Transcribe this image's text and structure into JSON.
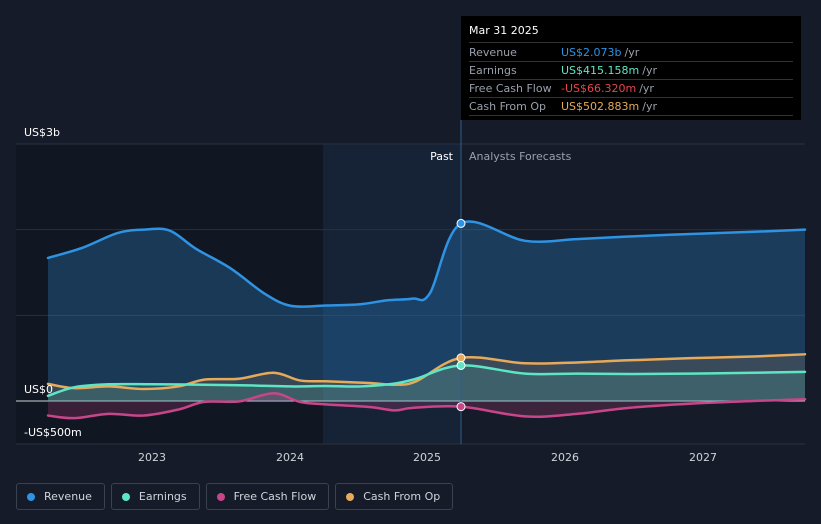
{
  "chart_data": {
    "type": "area",
    "y_top_label": "US$3b",
    "y_zero_label": "US$0",
    "y_bottom_label": "-US$500m",
    "ylim": [
      -500,
      3000
    ],
    "x_ticks": [
      "2023",
      "2024",
      "2025",
      "2026",
      "2027"
    ],
    "past_label": "Past",
    "forecast_label": "Analysts Forecasts",
    "divider_date": 2025.24,
    "series": [
      {
        "name": "Revenue",
        "color": "#2e93e3",
        "points": [
          [
            2022.0,
            1670
          ],
          [
            2022.2,
            1790
          ],
          [
            2022.4,
            1960
          ],
          [
            2022.55,
            2000
          ],
          [
            2022.7,
            1990
          ],
          [
            2022.85,
            1780
          ],
          [
            2023.05,
            1550
          ],
          [
            2023.25,
            1250
          ],
          [
            2023.4,
            1110
          ],
          [
            2023.6,
            1115
          ],
          [
            2023.8,
            1130
          ],
          [
            2023.95,
            1175
          ],
          [
            2024.1,
            1195
          ],
          [
            2024.2,
            1260
          ],
          [
            2024.24,
            2073
          ],
          [
            2025.5,
            1870
          ],
          [
            2025.75,
            1890
          ],
          [
            2026,
            1920
          ],
          [
            2026.3,
            1950
          ],
          [
            2026.6,
            1975
          ],
          [
            2026.85,
            2000
          ]
        ]
      },
      {
        "name": "Earnings",
        "color": "#5ee6c4",
        "points": [
          [
            2022.0,
            60
          ],
          [
            2022.15,
            160
          ],
          [
            2022.35,
            195
          ],
          [
            2022.6,
            195
          ],
          [
            2022.9,
            190
          ],
          [
            2023.2,
            180
          ],
          [
            2023.4,
            170
          ],
          [
            2023.6,
            175
          ],
          [
            2023.8,
            170
          ],
          [
            2024.0,
            205
          ],
          [
            2024.12,
            260
          ],
          [
            2024.24,
            415
          ],
          [
            2025.5,
            320
          ],
          [
            2025.75,
            320
          ],
          [
            2026,
            315
          ],
          [
            2026.3,
            320
          ],
          [
            2026.6,
            330
          ],
          [
            2026.85,
            340
          ]
        ]
      },
      {
        "name": "Free Cash Flow",
        "color": "#c7468a",
        "points": [
          [
            2022.0,
            -170
          ],
          [
            2022.15,
            -200
          ],
          [
            2022.35,
            -150
          ],
          [
            2022.55,
            -170
          ],
          [
            2022.75,
            -100
          ],
          [
            2022.9,
            -10
          ],
          [
            2023.1,
            -5
          ],
          [
            2023.3,
            90
          ],
          [
            2023.45,
            -10
          ],
          [
            2023.6,
            -40
          ],
          [
            2023.85,
            -70
          ],
          [
            2024.0,
            -110
          ],
          [
            2024.1,
            -80
          ],
          [
            2024.24,
            -66
          ],
          [
            2025.5,
            -180
          ],
          [
            2025.75,
            -150
          ],
          [
            2026,
            -80
          ],
          [
            2026.3,
            -30
          ],
          [
            2026.6,
            0
          ],
          [
            2026.85,
            20
          ]
        ]
      },
      {
        "name": "Cash From Op",
        "color": "#e7a95a",
        "points": [
          [
            2022.0,
            200
          ],
          [
            2022.15,
            150
          ],
          [
            2022.35,
            170
          ],
          [
            2022.55,
            140
          ],
          [
            2022.75,
            170
          ],
          [
            2022.9,
            250
          ],
          [
            2023.1,
            260
          ],
          [
            2023.3,
            330
          ],
          [
            2023.45,
            240
          ],
          [
            2023.6,
            230
          ],
          [
            2023.85,
            210
          ],
          [
            2024.0,
            190
          ],
          [
            2024.12,
            230
          ],
          [
            2024.24,
            503
          ],
          [
            2025.5,
            440
          ],
          [
            2025.75,
            450
          ],
          [
            2026,
            475
          ],
          [
            2026.3,
            500
          ],
          [
            2026.6,
            520
          ],
          [
            2026.85,
            545
          ]
        ]
      }
    ]
  },
  "tooltip": {
    "date": "Mar 31 2025",
    "rows": [
      {
        "label": "Revenue",
        "value": "US$2.073b",
        "unit": "/yr",
        "color": "#2e93e3"
      },
      {
        "label": "Earnings",
        "value": "US$415.158m",
        "unit": "/yr",
        "color": "#5ee6c4"
      },
      {
        "label": "Free Cash Flow",
        "value": "-US$66.320m",
        "unit": "/yr",
        "color": "#e8454e"
      },
      {
        "label": "Cash From Op",
        "value": "US$502.883m",
        "unit": "/yr",
        "color": "#e7a95a"
      }
    ]
  },
  "legend": [
    {
      "label": "Revenue",
      "color": "#2e93e3"
    },
    {
      "label": "Earnings",
      "color": "#5ee6c4"
    },
    {
      "label": "Free Cash Flow",
      "color": "#c7468a"
    },
    {
      "label": "Cash From Op",
      "color": "#e7a95a"
    }
  ]
}
